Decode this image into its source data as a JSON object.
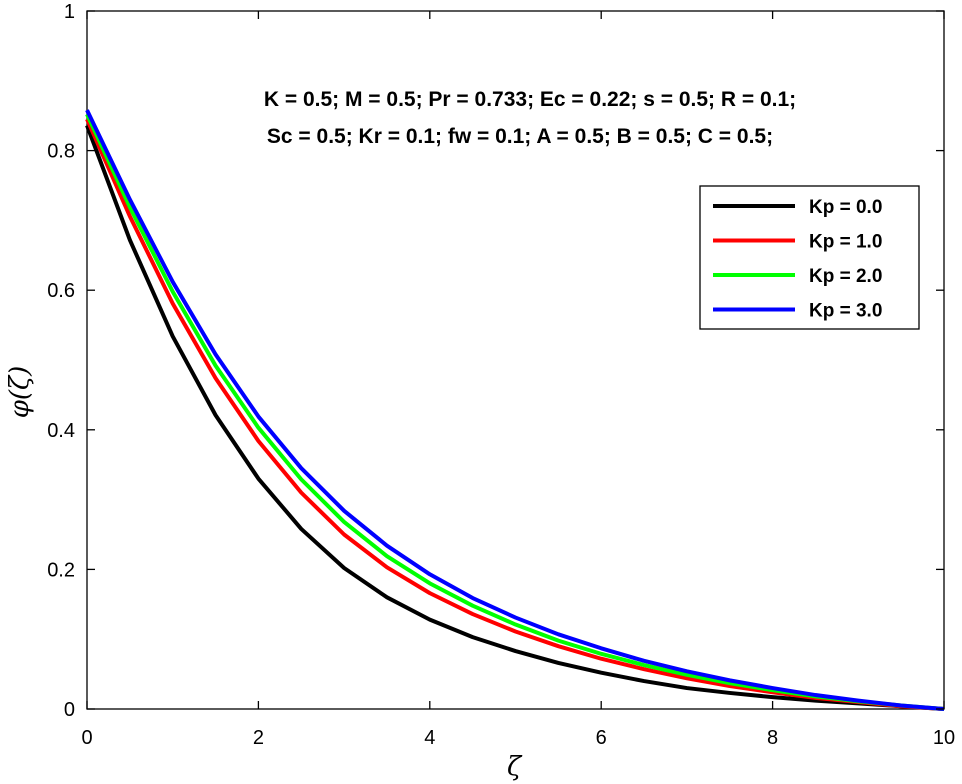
{
  "chart_data": {
    "type": "line",
    "title": "",
    "xlabel": "ζ",
    "ylabel": "φ(ζ)",
    "xlim": [
      0,
      10
    ],
    "ylim": [
      0,
      1
    ],
    "xticks": [
      0,
      2,
      4,
      6,
      8,
      10
    ],
    "yticks": [
      0,
      0.2,
      0.4,
      0.6,
      0.8,
      1
    ],
    "xtick_labels": [
      "0",
      "2",
      "4",
      "6",
      "8",
      "10"
    ],
    "ytick_labels": [
      "0",
      "0.2",
      "0.4",
      "0.6",
      "0.8",
      "1"
    ],
    "grid": false,
    "legend_position": "upper-right",
    "annotations": [
      "K = 0.5; M = 0.5; Pr = 0.733; Ec = 0.22; s = 0.5; R = 0.1;",
      "Sc = 0.5; Kr = 0.1; fw = 0.1; A = 0.5; B = 0.5; C = 0.5;"
    ],
    "x": [
      0,
      0.5,
      1,
      1.5,
      2,
      2.5,
      3,
      3.5,
      4,
      4.5,
      5,
      5.5,
      6,
      6.5,
      7,
      7.5,
      8,
      8.5,
      9,
      9.5,
      10
    ],
    "series": [
      {
        "name": "Kp = 0.0",
        "color": "#000000",
        "values": [
          0.836,
          0.672,
          0.534,
          0.421,
          0.33,
          0.258,
          0.202,
          0.16,
          0.128,
          0.103,
          0.083,
          0.066,
          0.052,
          0.04,
          0.03,
          0.023,
          0.017,
          0.012,
          0.008,
          0.004,
          0.0
        ]
      },
      {
        "name": "Kp = 1.0",
        "color": "#ff0000",
        "values": [
          0.845,
          0.706,
          0.581,
          0.474,
          0.384,
          0.31,
          0.25,
          0.203,
          0.166,
          0.136,
          0.111,
          0.09,
          0.072,
          0.057,
          0.044,
          0.033,
          0.024,
          0.016,
          0.01,
          0.004,
          0.0
        ]
      },
      {
        "name": "Kp = 2.0",
        "color": "#00ff00",
        "values": [
          0.852,
          0.719,
          0.598,
          0.492,
          0.403,
          0.329,
          0.268,
          0.219,
          0.18,
          0.148,
          0.121,
          0.098,
          0.079,
          0.063,
          0.049,
          0.037,
          0.027,
          0.018,
          0.011,
          0.005,
          0.0
        ]
      },
      {
        "name": "Kp = 3.0",
        "color": "#0000ff",
        "values": [
          0.858,
          0.73,
          0.612,
          0.508,
          0.419,
          0.345,
          0.284,
          0.234,
          0.193,
          0.159,
          0.131,
          0.107,
          0.087,
          0.069,
          0.054,
          0.041,
          0.03,
          0.02,
          0.012,
          0.005,
          0.0
        ]
      }
    ]
  }
}
